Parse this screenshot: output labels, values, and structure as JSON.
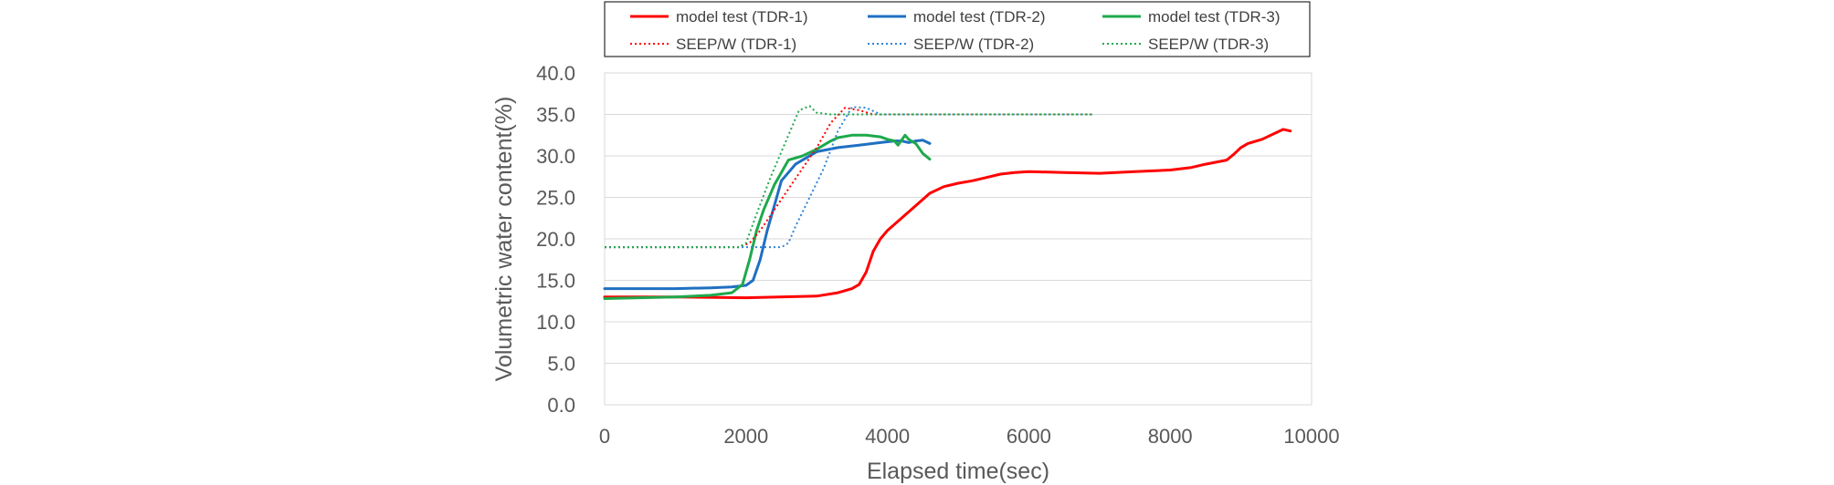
{
  "chart_data": {
    "type": "line",
    "xlabel": "Elapsed time(sec)",
    "ylabel": "Volumetric water content(%)",
    "xlim": [
      0,
      10000
    ],
    "ylim": [
      0,
      40
    ],
    "xticks": [
      "0",
      "2000",
      "4000",
      "6000",
      "8000",
      "10000"
    ],
    "yticks": [
      "0.0",
      "5.0",
      "10.0",
      "15.0",
      "20.0",
      "25.0",
      "30.0",
      "35.0",
      "40.0"
    ],
    "grid": "horizontal",
    "legend_position": "top",
    "series": [
      {
        "name": "model test (TDR-1)",
        "color": "#ff0000",
        "dash": "solid",
        "x": [
          0,
          1000,
          2000,
          3000,
          3300,
          3500,
          3600,
          3700,
          3800,
          3900,
          4000,
          4200,
          4400,
          4600,
          4800,
          5000,
          5200,
          5400,
          5600,
          5800,
          6000,
          6500,
          7000,
          7500,
          8000,
          8300,
          8500,
          8800,
          8900,
          9000,
          9100,
          9300,
          9500,
          9600,
          9700
        ],
        "y": [
          13.0,
          13.0,
          12.9,
          13.1,
          13.5,
          14.0,
          14.5,
          16.0,
          18.5,
          20.0,
          21.0,
          22.5,
          24.0,
          25.5,
          26.3,
          26.7,
          27.0,
          27.4,
          27.8,
          28.0,
          28.1,
          28.0,
          27.9,
          28.1,
          28.3,
          28.6,
          29.0,
          29.5,
          30.2,
          31.0,
          31.5,
          32.0,
          32.8,
          33.2,
          33.0
        ]
      },
      {
        "name": "model test (TDR-2)",
        "color": "#1f70c1",
        "dash": "solid",
        "x": [
          0,
          500,
          1000,
          1500,
          1800,
          2000,
          2100,
          2200,
          2300,
          2400,
          2500,
          2700,
          3000,
          3300,
          3600,
          3900,
          4100,
          4200,
          4300,
          4400,
          4500,
          4600
        ],
        "y": [
          14.0,
          14.0,
          14.0,
          14.1,
          14.2,
          14.4,
          15.0,
          17.5,
          21.0,
          24.0,
          27.0,
          29.0,
          30.5,
          31.0,
          31.3,
          31.6,
          31.8,
          31.8,
          31.6,
          31.8,
          31.9,
          31.5
        ]
      },
      {
        "name": "model test (TDR-3)",
        "color": "#1ea94c",
        "dash": "solid",
        "x": [
          0,
          500,
          1000,
          1500,
          1800,
          1950,
          2050,
          2150,
          2250,
          2400,
          2500,
          2600,
          2800,
          3000,
          3200,
          3300,
          3500,
          3700,
          3900,
          4000,
          4100,
          4150,
          4250,
          4300,
          4400,
          4500,
          4600
        ],
        "y": [
          12.8,
          12.9,
          13.0,
          13.2,
          13.5,
          14.5,
          17.5,
          21.0,
          23.5,
          26.5,
          28.0,
          29.5,
          30.0,
          30.8,
          31.8,
          32.2,
          32.5,
          32.5,
          32.3,
          32.0,
          31.8,
          31.3,
          32.5,
          32.0,
          31.5,
          30.3,
          29.6
        ]
      },
      {
        "name": "SEEP/W (TDR-1)",
        "color": "#ff0000",
        "dash": "dotted",
        "x": [
          0,
          1900,
          2050,
          2200,
          2400,
          2600,
          2800,
          3000,
          3200,
          3400,
          3600,
          3800,
          4500,
          6000,
          6900
        ],
        "y": [
          19.0,
          19.0,
          19.5,
          21.0,
          23.5,
          26.0,
          28.5,
          31.0,
          34.0,
          35.8,
          35.5,
          35.0,
          35.0,
          35.0,
          35.0
        ]
      },
      {
        "name": "SEEP/W (TDR-2)",
        "color": "#2e86d8",
        "dash": "dotted",
        "x": [
          0,
          2500,
          2600,
          2700,
          2900,
          3100,
          3300,
          3500,
          3700,
          3900,
          4500,
          6000,
          6900
        ],
        "y": [
          19.0,
          19.0,
          19.5,
          21.5,
          25.0,
          28.5,
          33.0,
          35.9,
          35.8,
          35.0,
          35.0,
          35.0,
          35.0
        ]
      },
      {
        "name": "SEEP/W (TDR-3)",
        "color": "#1ea94c",
        "dash": "dotted",
        "x": [
          0,
          1900,
          2000,
          2150,
          2350,
          2550,
          2750,
          2900,
          3000,
          3200,
          3500,
          4500,
          6000,
          6900
        ],
        "y": [
          19.0,
          19.0,
          19.5,
          23.0,
          27.5,
          31.5,
          35.5,
          36.0,
          35.2,
          35.0,
          35.0,
          35.0,
          35.0,
          35.0
        ]
      }
    ]
  }
}
